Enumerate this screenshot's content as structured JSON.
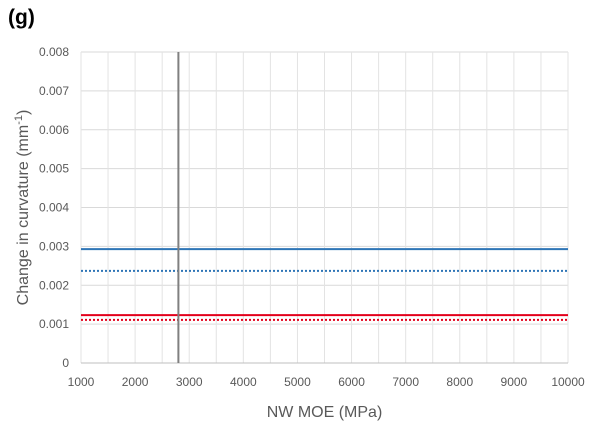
{
  "panel_label": "(g)",
  "chart_data": {
    "type": "line",
    "xlabel": "NW MOE (MPa)",
    "ylabel": {
      "text": "Change in curvature (mm",
      "sup": "-1",
      "suffix": ")"
    },
    "xlim": [
      1000,
      10000
    ],
    "ylim": [
      0,
      0.008
    ],
    "xticks": [
      "1000",
      "2000",
      "3000",
      "4000",
      "5000",
      "6000",
      "7000",
      "8000",
      "9000",
      "10000"
    ],
    "yticks": [
      "0",
      "0.001",
      "0.002",
      "0.003",
      "0.004",
      "0.005",
      "0.006",
      "0.007",
      "0.008"
    ],
    "minor_x_gridlines": true,
    "grid": true,
    "reference_line": {
      "x": 2800,
      "color": "#808080"
    },
    "series": [
      {
        "x": [
          1000,
          10000
        ],
        "y": [
          0.00293,
          0.00293
        ],
        "color": "#2e75b6",
        "style": "solid"
      },
      {
        "x": [
          1000,
          10000
        ],
        "y": [
          0.00237,
          0.00237
        ],
        "color": "#2e75b6",
        "style": "dotted"
      },
      {
        "x": [
          1000,
          10000
        ],
        "y": [
          0.00123,
          0.00123
        ],
        "color": "#e3001b",
        "style": "solid"
      },
      {
        "x": [
          1000,
          10000
        ],
        "y": [
          0.00111,
          0.00111
        ],
        "color": "#e3001b",
        "style": "dotted"
      }
    ]
  }
}
